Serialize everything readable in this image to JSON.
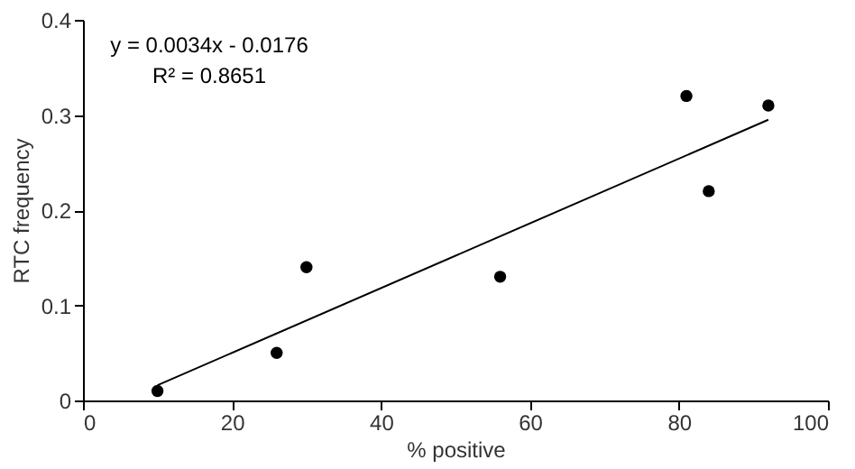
{
  "chart_data": {
    "type": "scatter",
    "xlabel": "% positive",
    "ylabel": "RTC frequency",
    "annotations": [
      "y = 0.0034x - 0.0176",
      "R² = 0.8651"
    ],
    "xlim": [
      0,
      100
    ],
    "xticks": [
      0,
      20,
      40,
      60,
      80,
      100
    ],
    "ylim": [
      0,
      0.4
    ],
    "yticks": [
      {
        "value": 0,
        "label": "0"
      },
      0.1,
      0.2,
      0.3,
      0.4
    ],
    "grid": false,
    "marker": "circle",
    "series": [
      {
        "type": "scatter",
        "color": "#000000",
        "x": [
          10,
          26,
          30,
          56,
          81,
          84,
          92
        ],
        "values": [
          0.01,
          0.05,
          0.14,
          0.13,
          0.32,
          0.22,
          0.31
        ]
      },
      {
        "type": "line",
        "color": "#000000",
        "x": [
          10,
          92
        ],
        "values": [
          0.016,
          0.295
        ],
        "line_style": "solid",
        "marker": "none"
      }
    ]
  }
}
